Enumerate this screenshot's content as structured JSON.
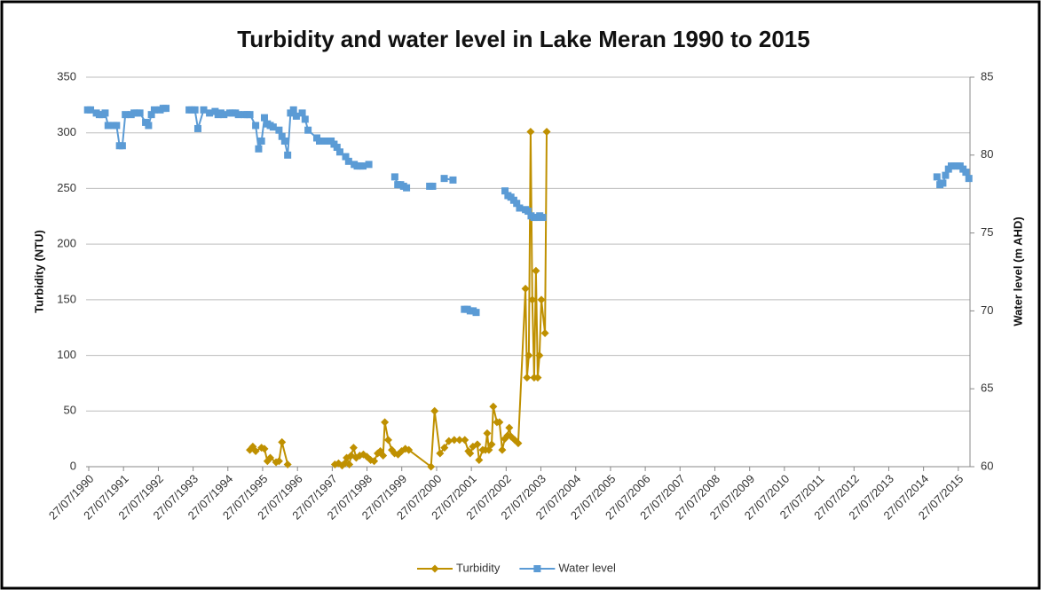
{
  "chart_data": {
    "type": "line",
    "title": "Turbidity and water level in Lake Meran 1990 to 2015",
    "y_label": "Turbidity (NTU)",
    "y2_label": "Water level (m AHD)",
    "xlim": [
      "27/07/1990",
      "27/11/2015"
    ],
    "xticks": [
      "27/07/1990",
      "27/07/1991",
      "27/07/1992",
      "27/07/1993",
      "27/07/1994",
      "27/07/1995",
      "27/07/1996",
      "27/07/1997",
      "27/07/1998",
      "27/07/1999",
      "27/07/2000",
      "27/07/2001",
      "27/07/2002",
      "27/07/2003",
      "27/07/2004",
      "27/07/2005",
      "27/07/2006",
      "27/07/2007",
      "27/07/2008",
      "27/07/2009",
      "27/07/2010",
      "27/07/2011",
      "27/07/2012",
      "27/07/2013",
      "27/07/2014",
      "27/07/2015"
    ],
    "ylim": [
      0,
      350
    ],
    "yticks": [
      0,
      50,
      100,
      150,
      200,
      250,
      300,
      350
    ],
    "y2lim": [
      60,
      85
    ],
    "y2ticks": [
      60,
      65,
      70,
      75,
      80,
      85
    ],
    "grid": true,
    "legend": "bottom",
    "series": [
      {
        "name": "Turbidity",
        "color": "#bf9000",
        "marker": "diamond",
        "axis": "y",
        "x": [
          "15/03/1995",
          "15/04/1995",
          "15/05/1995",
          "15/07/1995",
          "15/08/1995",
          "15/09/1995",
          "15/10/1995",
          "15/12/1995",
          "15/01/1996",
          "15/02/1996",
          "15/04/1996",
          null,
          "24/08/1997",
          "01/10/1997",
          "08/11/1997",
          "06/12/1997",
          "25/12/1997",
          "22/01/1998",
          "10/02/1998",
          "08/03/1998",
          "05/04/1998",
          "12/05/1998",
          "19/06/1998",
          "26/07/1998",
          "03/09/1998",
          "10/10/1998",
          "16/11/1998",
          "14/12/1998",
          "12/01/1999",
          "30/01/1999",
          "07/03/1999",
          "14/04/1999",
          "12/05/1999",
          "18/06/1999",
          "25/07/1999",
          "02/09/1999",
          "09/10/1999",
          "29/05/2000",
          "06/07/2000",
          "01/09/2000",
          "17/10/2000",
          "03/12/2000",
          "28/01/2001",
          "24/03/2001",
          "19/05/2001",
          "26/06/2001",
          "14/07/2001",
          "12/08/2001",
          "28/09/2001",
          "16/10/2001",
          "23/11/2001",
          "21/12/2001",
          "09/01/2002",
          "27/01/2002",
          "25/02/2002",
          "14/03/2002",
          "21/04/2002",
          "18/05/2002",
          "16/06/2002",
          "13/07/2002",
          "11/08/2002",
          "29/08/2002",
          "17/09/2002",
          "25/10/2002",
          "01/12/2002",
          "15/02/2003",
          "03/03/2003",
          "22/03/2003",
          "10/04/2003",
          "28/04/2003",
          "17/05/2003",
          "05/06/2003",
          "24/06/2003",
          "12/07/2003",
          "01/08/2003",
          "08/09/2003",
          "26/09/2003"
        ],
        "values": [
          15,
          18,
          14,
          17,
          16,
          5,
          8,
          4,
          5,
          22,
          2,
          null,
          2,
          3,
          1,
          3,
          8,
          2,
          10,
          17,
          8,
          10,
          11,
          9,
          6,
          5,
          12,
          14,
          10,
          40,
          24,
          15,
          12,
          11,
          14,
          16,
          15,
          0,
          50,
          12,
          17,
          23,
          24,
          24,
          24,
          14,
          12,
          18,
          20,
          6,
          15,
          15,
          30,
          15,
          20,
          54,
          40,
          40,
          15,
          25,
          28,
          35,
          27,
          24,
          21,
          160,
          80,
          100,
          301,
          150,
          80,
          176,
          80,
          100,
          150,
          120,
          301
        ]
      },
      {
        "name": "Water level",
        "color": "#5b9bd5",
        "marker": "square",
        "axis": "y2",
        "x": [
          "15/07/1990",
          "15/08/1990",
          "15/10/1990",
          "15/11/1990",
          "15/12/1990",
          "15/01/1991",
          "15/02/1991",
          "15/04/1991",
          "15/05/1991",
          "15/06/1991",
          "15/07/1991",
          "15/08/1991",
          "15/10/1991",
          "15/11/1991",
          "15/12/1991",
          "15/01/1992",
          "15/03/1992",
          "15/04/1992",
          "15/05/1992",
          "15/06/1992",
          "15/08/1992",
          "15/09/1992",
          "15/10/1992",
          null,
          "15/06/1993",
          "15/07/1993",
          "15/08/1993",
          "15/09/1993",
          "15/11/1993",
          "15/01/1994",
          "15/03/1994",
          "15/04/1994",
          "15/05/1994",
          "15/06/1994",
          "15/08/1994",
          "15/09/1994",
          "15/10/1994",
          "15/11/1994",
          "15/01/1995",
          "15/02/1995",
          "15/03/1995",
          "15/05/1995",
          "15/06/1995",
          "15/07/1995",
          "15/08/1995",
          "15/09/1995",
          "15/10/1995",
          "15/11/1995",
          "15/01/1996",
          "15/02/1996",
          "15/03/1996",
          "15/04/1996",
          "15/05/1996",
          "15/06/1996",
          "15/07/1996",
          "15/09/1996",
          "15/10/1996",
          "15/11/1996",
          "15/02/1997",
          "15/03/1997",
          "15/05/1997",
          "15/06/1997",
          "15/07/1997",
          "15/08/1997",
          "15/09/1997",
          "15/10/1997",
          "15/12/1997",
          "15/01/1998",
          "15/03/1998",
          "15/04/1998",
          "15/05/1998",
          "15/06/1998",
          "15/08/1998",
          null,
          "15/05/1999",
          "15/06/1999",
          "15/07/1999",
          "15/08/1999",
          "15/09/1999",
          null,
          "15/05/2000",
          "15/06/2000",
          null,
          "15/10/2000",
          "15/01/2001",
          null,
          "15/05/2001",
          "15/06/2001",
          "15/07/2001",
          "15/08/2001",
          "15/09/2001",
          null,
          "15/07/2002",
          "15/08/2002",
          "15/09/2002",
          "15/10/2002",
          "15/11/2002",
          "15/12/2002",
          "15/02/2003",
          "15/03/2003",
          "15/04/2003",
          "15/05/2003",
          "15/06/2003",
          "15/07/2003",
          "15/08/2003",
          null,
          "15/12/2014",
          "15/01/2015",
          "15/02/2015",
          "15/03/2015",
          "15/04/2015",
          "15/05/2015",
          "15/06/2015",
          "15/07/2015",
          "15/08/2015",
          "15/09/2015",
          "15/10/2015",
          "15/11/2015"
        ],
        "values": [
          82.9,
          82.9,
          82.7,
          82.6,
          82.6,
          82.7,
          81.9,
          81.9,
          81.9,
          80.6,
          80.6,
          82.6,
          82.6,
          82.7,
          82.7,
          82.7,
          82.1,
          81.9,
          82.6,
          82.9,
          82.9,
          83.0,
          83.0,
          null,
          82.9,
          82.9,
          82.9,
          81.7,
          82.9,
          82.7,
          82.8,
          82.6,
          82.7,
          82.6,
          82.7,
          82.7,
          82.7,
          82.6,
          82.6,
          82.6,
          82.6,
          81.9,
          80.4,
          80.9,
          82.4,
          82.0,
          81.9,
          81.8,
          81.6,
          81.2,
          80.9,
          80.0,
          82.7,
          82.9,
          82.5,
          82.7,
          82.3,
          81.6,
          81.1,
          80.9,
          80.9,
          80.9,
          80.9,
          80.7,
          80.5,
          80.2,
          79.9,
          79.6,
          79.4,
          79.3,
          79.3,
          79.3,
          79.4,
          null,
          78.6,
          78.1,
          78.1,
          78.0,
          77.9,
          null,
          78.0,
          78.0,
          null,
          78.5,
          78.4,
          null,
          70.1,
          70.1,
          70.0,
          70.0,
          69.9,
          null,
          77.7,
          77.4,
          77.3,
          77.1,
          76.9,
          76.6,
          76.5,
          76.4,
          76.1,
          76.0,
          76.0,
          76.1,
          76.0,
          null,
          78.6,
          78.1,
          78.2,
          78.7,
          79.1,
          79.3,
          79.3,
          79.3,
          79.3,
          79.1,
          78.9,
          78.5
        ]
      }
    ]
  }
}
